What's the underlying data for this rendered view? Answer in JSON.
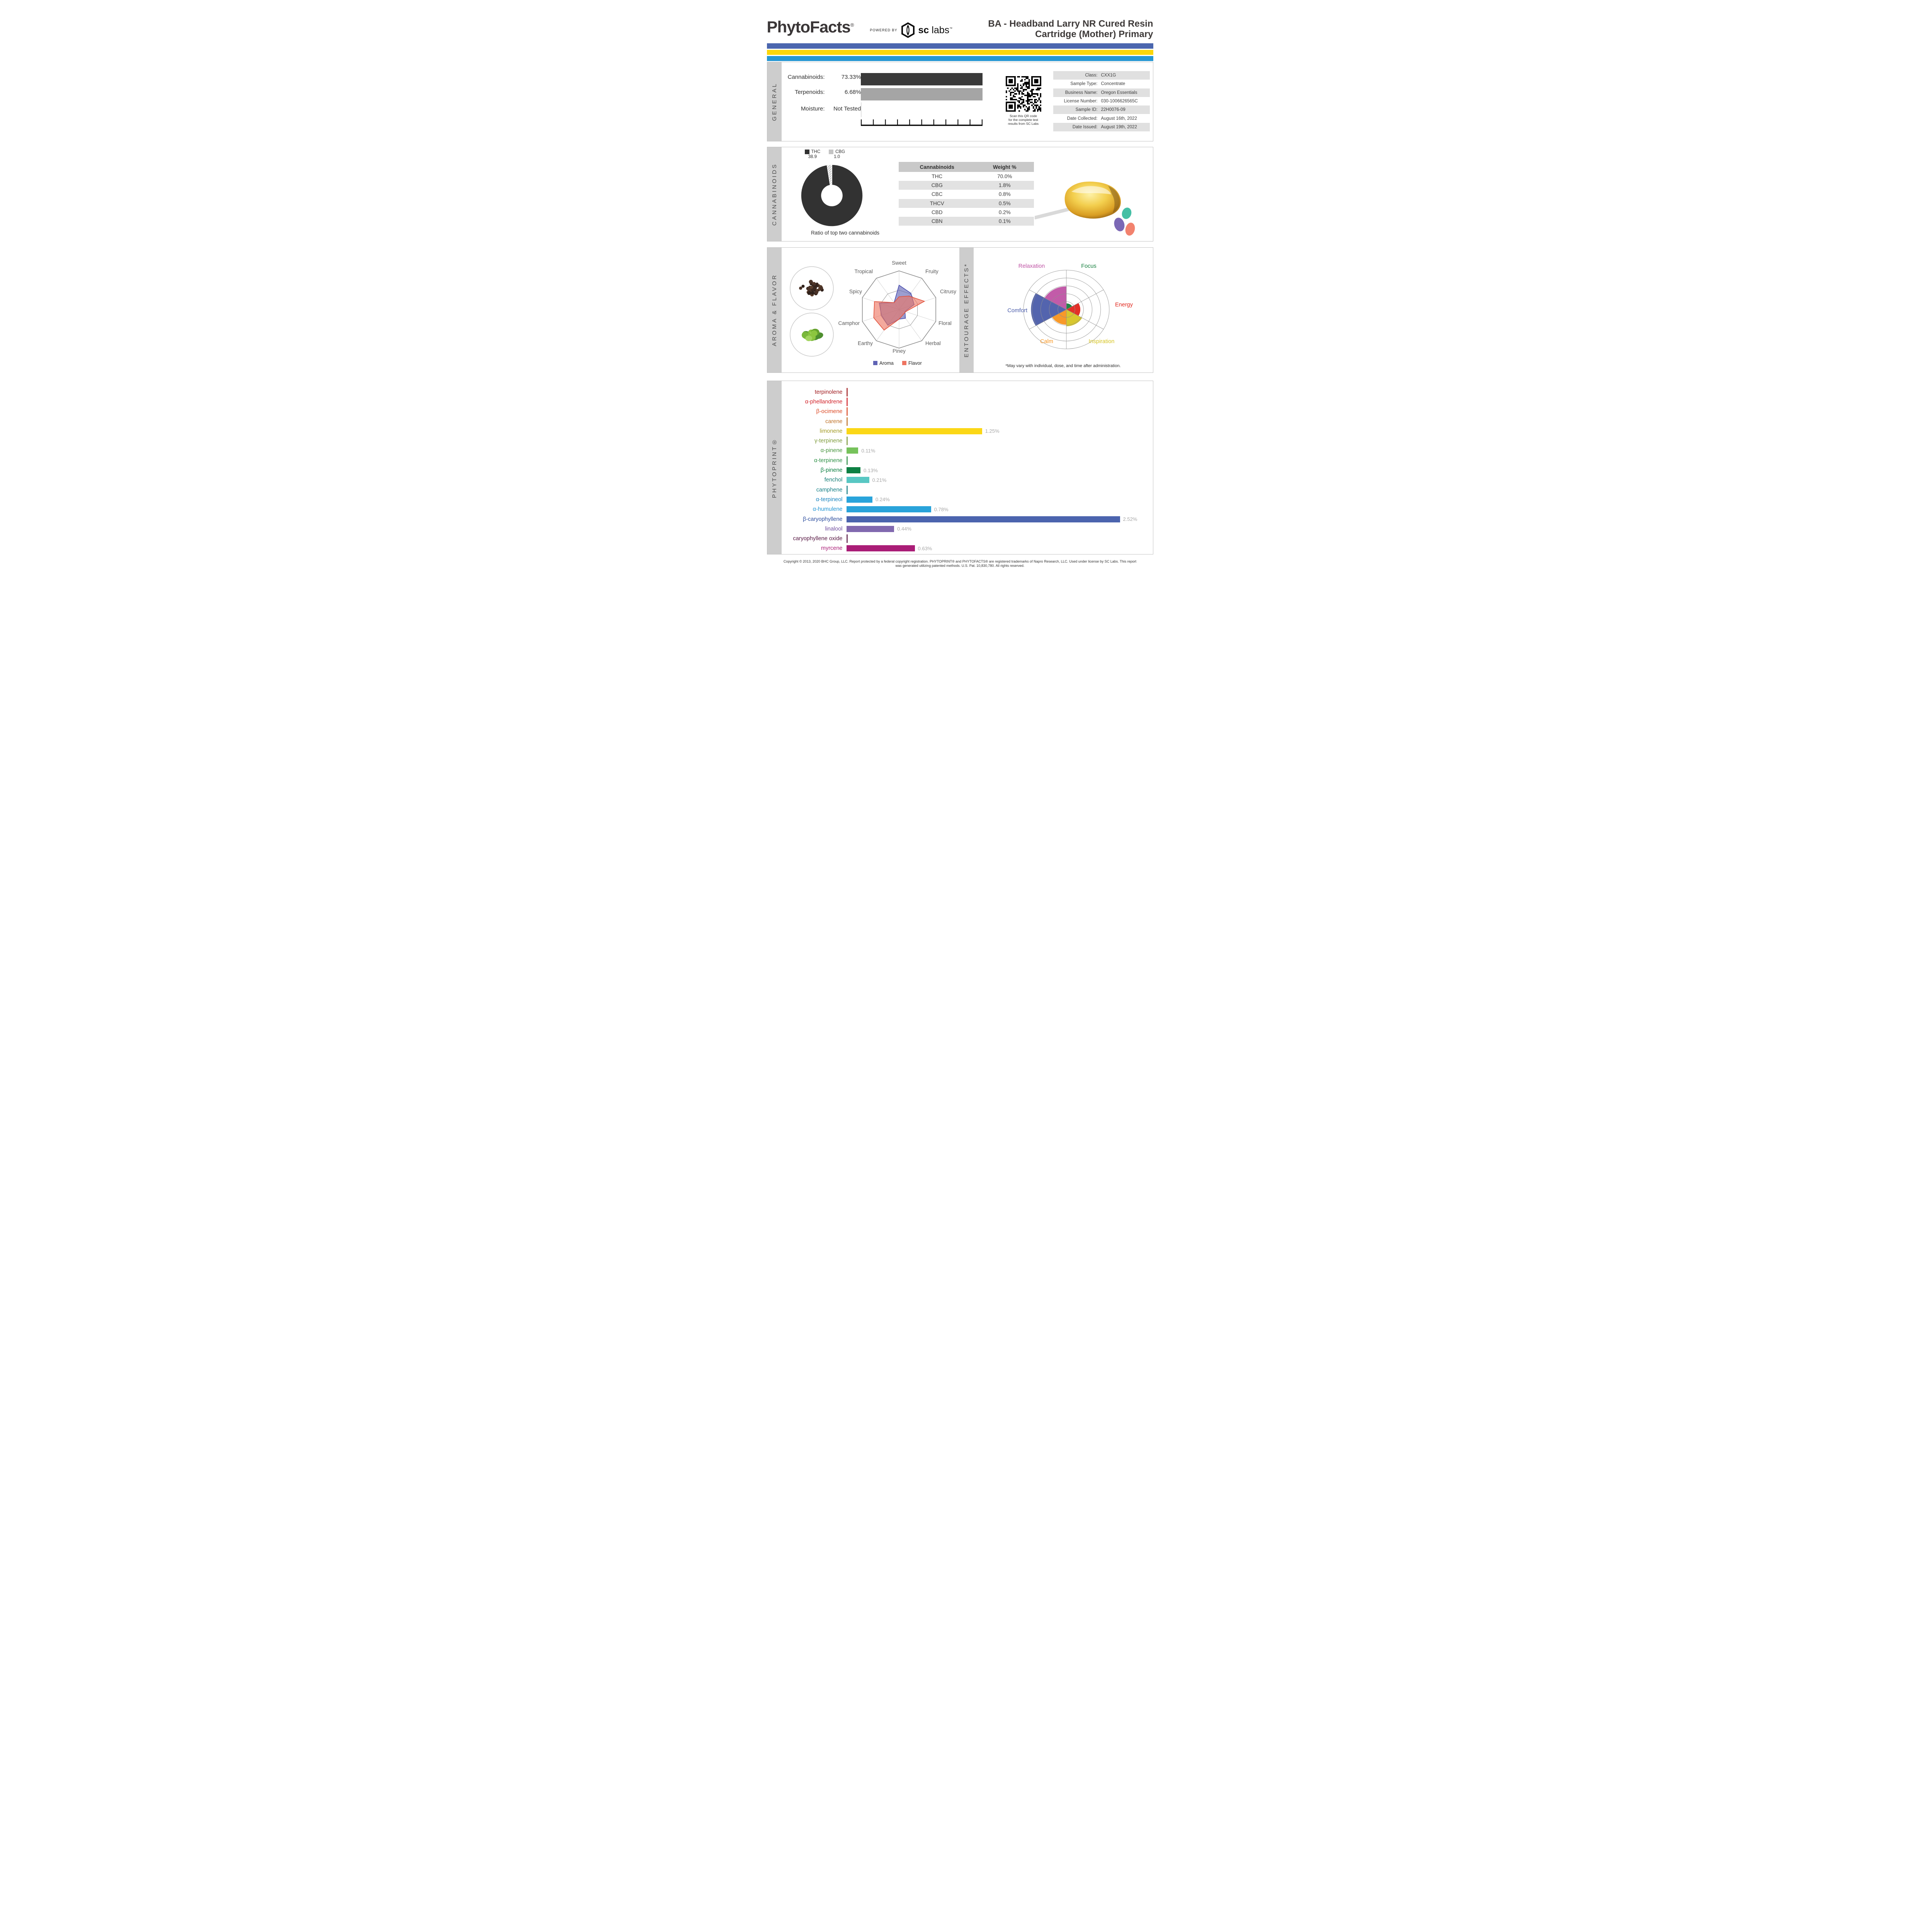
{
  "page": {
    "brand": "PhytoFacts",
    "brand_reg": "®",
    "powered_by": "POWERED BY",
    "sclabs": {
      "sc": "sc",
      "labs": "labs",
      "tm": "™"
    },
    "title_line1": "BA - Headband Larry NR Cured Resin",
    "title_line2": "Cartridge (Mother) Primary",
    "stripe_colors": [
      "#4b66ae",
      "#fbd60b",
      "#2697d3"
    ],
    "footer_line1": "Copyright © 2013, 2020 BHC Group, LLC. Report protected by a federal copyright registration. PHYTOPRINT® and PHYTOFACTS® are registered trademarks of Napro Research, LLC. Used under license by SC Labs. This report",
    "footer_line2": "was generated utilizing patented methods. U.S. Pat. 10,830,780. All rights reserved."
  },
  "general": {
    "section_label": "GENERAL",
    "metrics": [
      {
        "label": "Cannabinoids:",
        "value": "73.33%",
        "bar_color": "#3a3a3a"
      },
      {
        "label": "Terpenoids:",
        "value": "6.68%",
        "bar_color": "#a5a5a5"
      },
      {
        "label": "Moisture:",
        "value": "Not Tested",
        "bar_color": null
      }
    ],
    "qr_caption": [
      "Scan this QR code",
      "for the complete test",
      "results from SC Labs"
    ],
    "info_rows": [
      {
        "label": "Class:",
        "value": "CXX1G"
      },
      {
        "label": "Sample Type:",
        "value": "Concentrate"
      },
      {
        "label": "Business Name:",
        "value": "Oregon Essentials"
      },
      {
        "label": "License Number:",
        "value": "030-1006626565C"
      },
      {
        "label": "Sample ID:",
        "value": "22H0076-09"
      },
      {
        "label": "Date Collected:",
        "value": "August 16th, 2022"
      },
      {
        "label": "Date Issued:",
        "value": "August 19th, 2022"
      }
    ]
  },
  "cannabinoids": {
    "section_label": "CANNABINOIDS",
    "caption": "Ratio of top two cannabinoids",
    "legend": {
      "thc_label": "THC",
      "thc_value": "38.9",
      "cbg_label": "CBG",
      "cbg_value": "1.0"
    }
  },
  "aroma": {
    "section_label": "AROMA & FLAVOR",
    "legend": {
      "aroma": "Aroma",
      "flavor": "Flavor"
    }
  },
  "entourage": {
    "section_label": "ENTOURAGE EFFECTS*",
    "footnote": "*May vary with individual, dose, and time after administration."
  },
  "phytoprint": {
    "section_label": "PHYTOPRINT®"
  },
  "chart_data": [
    {
      "id": "cannabinoid_ratio_donut",
      "type": "pie",
      "title": "Ratio of top two cannabinoids",
      "slices": [
        {
          "label": "THC",
          "value": 38.9,
          "color": "#323232"
        },
        {
          "label": "CBG",
          "value": 1.0,
          "color": "#c4c4c4",
          "hatch": true
        }
      ]
    },
    {
      "id": "cannabinoid_table",
      "type": "table",
      "columns": [
        "Cannabinoids",
        "Weight %"
      ],
      "rows": [
        [
          "THC",
          "70.0%"
        ],
        [
          "CBG",
          "1.8%"
        ],
        [
          "CBC",
          "0.8%"
        ],
        [
          "THCV",
          "0.5%"
        ],
        [
          "CBD",
          "0.2%"
        ],
        [
          "CBN",
          "0.1%"
        ]
      ]
    },
    {
      "id": "aroma_flavor_radar",
      "type": "radar",
      "axes": [
        "Sweet",
        "Fruity",
        "Citrusy",
        "Floral",
        "Herbal",
        "Piney",
        "Earthy",
        "Camphor",
        "Spicy",
        "Tropical"
      ],
      "scale_max": 1,
      "series": [
        {
          "name": "Aroma",
          "color": "#5f63b4",
          "stroke": "#4549ac",
          "values": [
            0.63,
            0.52,
            0.41,
            0.16,
            0.28,
            0.25,
            0.5,
            0.48,
            0.54,
            0.22
          ]
        },
        {
          "name": "Flavor",
          "color": "#ee7461",
          "stroke": "#e2503a",
          "values": [
            0.33,
            0.43,
            0.69,
            0.18,
            0.17,
            0.25,
            0.66,
            0.69,
            0.67,
            0.22
          ]
        }
      ],
      "note": "values estimated from figure, 0-1 of axis maximum"
    },
    {
      "id": "entourage_polar",
      "type": "polar_sectors",
      "rings": 5,
      "sectors": [
        {
          "label": "Focus",
          "color": "#157f3d",
          "value": 0.15
        },
        {
          "label": "Energy",
          "color": "#e1251b",
          "value": 0.32
        },
        {
          "label": "Inspiration",
          "color": "#d6c422",
          "value": 0.42
        },
        {
          "label": "Calm",
          "color": "#f8941d",
          "value": 0.38
        },
        {
          "label": "Comfort",
          "color": "#4a5caa",
          "value": 0.82
        },
        {
          "label": "Relaxation",
          "color": "#bf52a4",
          "value": 0.58
        }
      ],
      "note": "values estimated from figure, fraction of outer ring"
    },
    {
      "id": "phytoprint_bars",
      "type": "bar",
      "orientation": "horizontal",
      "unit": "%",
      "items": [
        {
          "name": "terpinolene",
          "value": 0,
          "display": "",
          "label_color": "#a11d21",
          "bar_color": "#a11d21"
        },
        {
          "name": "α-phellandrene",
          "value": 0,
          "display": "",
          "label_color": "#d2232a",
          "bar_color": "#d2232a"
        },
        {
          "name": "β-ocimene",
          "value": 0,
          "display": "",
          "label_color": "#dc4b27",
          "bar_color": "#dc4b27"
        },
        {
          "name": "carene",
          "value": 0,
          "display": "",
          "label_color": "#bf7229",
          "bar_color": "#bf7229"
        },
        {
          "name": "limonene",
          "value": 1.25,
          "display": "1.25%",
          "label_color": "#a39b28",
          "bar_color": "#fbd716"
        },
        {
          "name": "γ-terpinene",
          "value": 0,
          "display": "",
          "label_color": "#7e9b3c",
          "bar_color": "#7e9b3c"
        },
        {
          "name": "α-pinene",
          "value": 0.11,
          "display": "0.11%",
          "label_color": "#48953f",
          "bar_color": "#76c25b"
        },
        {
          "name": "α-terpinene",
          "value": 0,
          "display": "",
          "label_color": "#2f9147",
          "bar_color": "#2f9147"
        },
        {
          "name": "β-pinene",
          "value": 0.13,
          "display": "0.13%",
          "label_color": "#0c7f41",
          "bar_color": "#0d8043"
        },
        {
          "name": "fenchol",
          "value": 0.21,
          "display": "0.21%",
          "label_color": "#187f78",
          "bar_color": "#58c7c3"
        },
        {
          "name": "camphene",
          "value": 0,
          "display": "",
          "label_color": "#157f86",
          "bar_color": "#157f86"
        },
        {
          "name": "α-terpineol",
          "value": 0.24,
          "display": "0.24%",
          "label_color": "#1c86c0",
          "bar_color": "#29a4db"
        },
        {
          "name": "α-humulene",
          "value": 0.78,
          "display": "0.78%",
          "label_color": "#2196d4",
          "bar_color": "#29a3da"
        },
        {
          "name": "β-caryophyllene",
          "value": 2.52,
          "display": "2.52%",
          "label_color": "#2d4e9e",
          "bar_color": "#4b64ae"
        },
        {
          "name": "linalool",
          "value": 0.44,
          "display": "0.44%",
          "label_color": "#7250a0",
          "bar_color": "#8169af"
        },
        {
          "name": "caryophyllene oxide",
          "value": 0,
          "display": "",
          "label_color": "#581843",
          "bar_color": "#581843"
        },
        {
          "name": "myrcene",
          "value": 0.63,
          "display": "0.63%",
          "label_color": "#ab1f78",
          "bar_color": "#aa1d77"
        }
      ]
    }
  ]
}
